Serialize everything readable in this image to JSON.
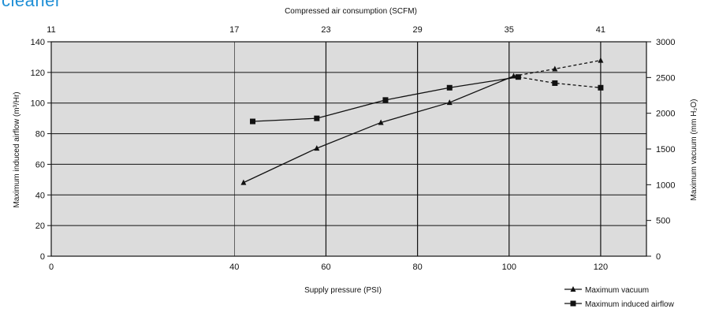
{
  "header_fragment": "cleaner",
  "chart_data": {
    "type": "line",
    "x": {
      "label": "Supply pressure (PSI)",
      "range": [
        0,
        130
      ],
      "ticks": [
        0,
        40,
        60,
        80,
        100,
        120
      ]
    },
    "x_top": {
      "label": "Compressed air consumption (SCFM)",
      "ticks": [
        "11",
        "17",
        "23",
        "29",
        "35",
        "41"
      ]
    },
    "y_left": {
      "label": "Maximum induced airflow (m³/Hr)",
      "range": [
        0,
        140
      ],
      "ticks": [
        0,
        20,
        40,
        60,
        80,
        100,
        120,
        140
      ]
    },
    "y_right": {
      "label": "Maximum vacuum (mm H₂O)",
      "range": [
        0,
        3000
      ],
      "ticks": [
        0,
        500,
        1000,
        1500,
        2000,
        2500,
        3000
      ]
    },
    "grid": true,
    "background": "#dcdcdc",
    "series": [
      {
        "name": "Maximum vacuum",
        "marker": "triangle",
        "axis": "right",
        "x": [
          42,
          58,
          72,
          87,
          101,
          110,
          120
        ],
        "values": [
          1030,
          1510,
          1870,
          2150,
          2520,
          2620,
          2740
        ],
        "dashed_from_index": 4
      },
      {
        "name": "Maximum induced airflow",
        "marker": "square",
        "axis": "left",
        "x": [
          44,
          58,
          73,
          87,
          102,
          110,
          120
        ],
        "values": [
          88,
          90,
          102,
          110,
          117,
          113,
          110
        ],
        "dashed_from_index": 4
      }
    ],
    "legend": {
      "placement": "bottom-right"
    }
  }
}
